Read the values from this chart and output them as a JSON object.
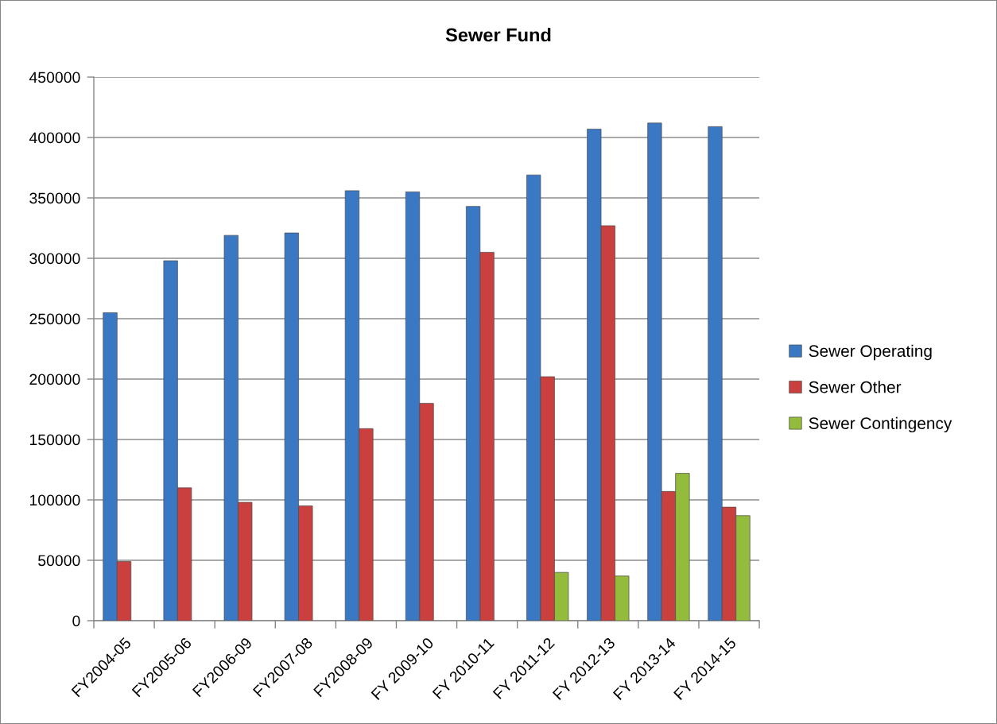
{
  "chart_data": {
    "type": "bar",
    "title": "Sewer Fund",
    "categories": [
      "FY2004-05",
      "FY2005-06",
      "FY2006-09",
      "FY2007-08",
      "FY2008-09",
      "FY 2009-10",
      "FY 2010-11",
      "FY 2011-12",
      "FY 2012-13",
      "FY 2013-14",
      "FY 2014-15"
    ],
    "series": [
      {
        "name": "Sewer Operating",
        "color": "#3b78c3",
        "values": [
          255000,
          298000,
          319000,
          321000,
          356000,
          355000,
          343000,
          369000,
          407000,
          412000,
          409000
        ]
      },
      {
        "name": "Sewer Other",
        "color": "#c9403e",
        "values": [
          49000,
          110000,
          98000,
          95000,
          159000,
          180000,
          305000,
          202000,
          327000,
          107000,
          94000
        ]
      },
      {
        "name": "Sewer Contingency",
        "color": "#93bb3c",
        "values": [
          null,
          null,
          null,
          null,
          null,
          null,
          null,
          40000,
          37000,
          122000,
          87000
        ]
      }
    ],
    "ylim": [
      0,
      450000
    ],
    "yticks": [
      0,
      50000,
      100000,
      150000,
      200000,
      250000,
      300000,
      350000,
      400000,
      450000
    ],
    "grid": "y",
    "legend": "right"
  }
}
